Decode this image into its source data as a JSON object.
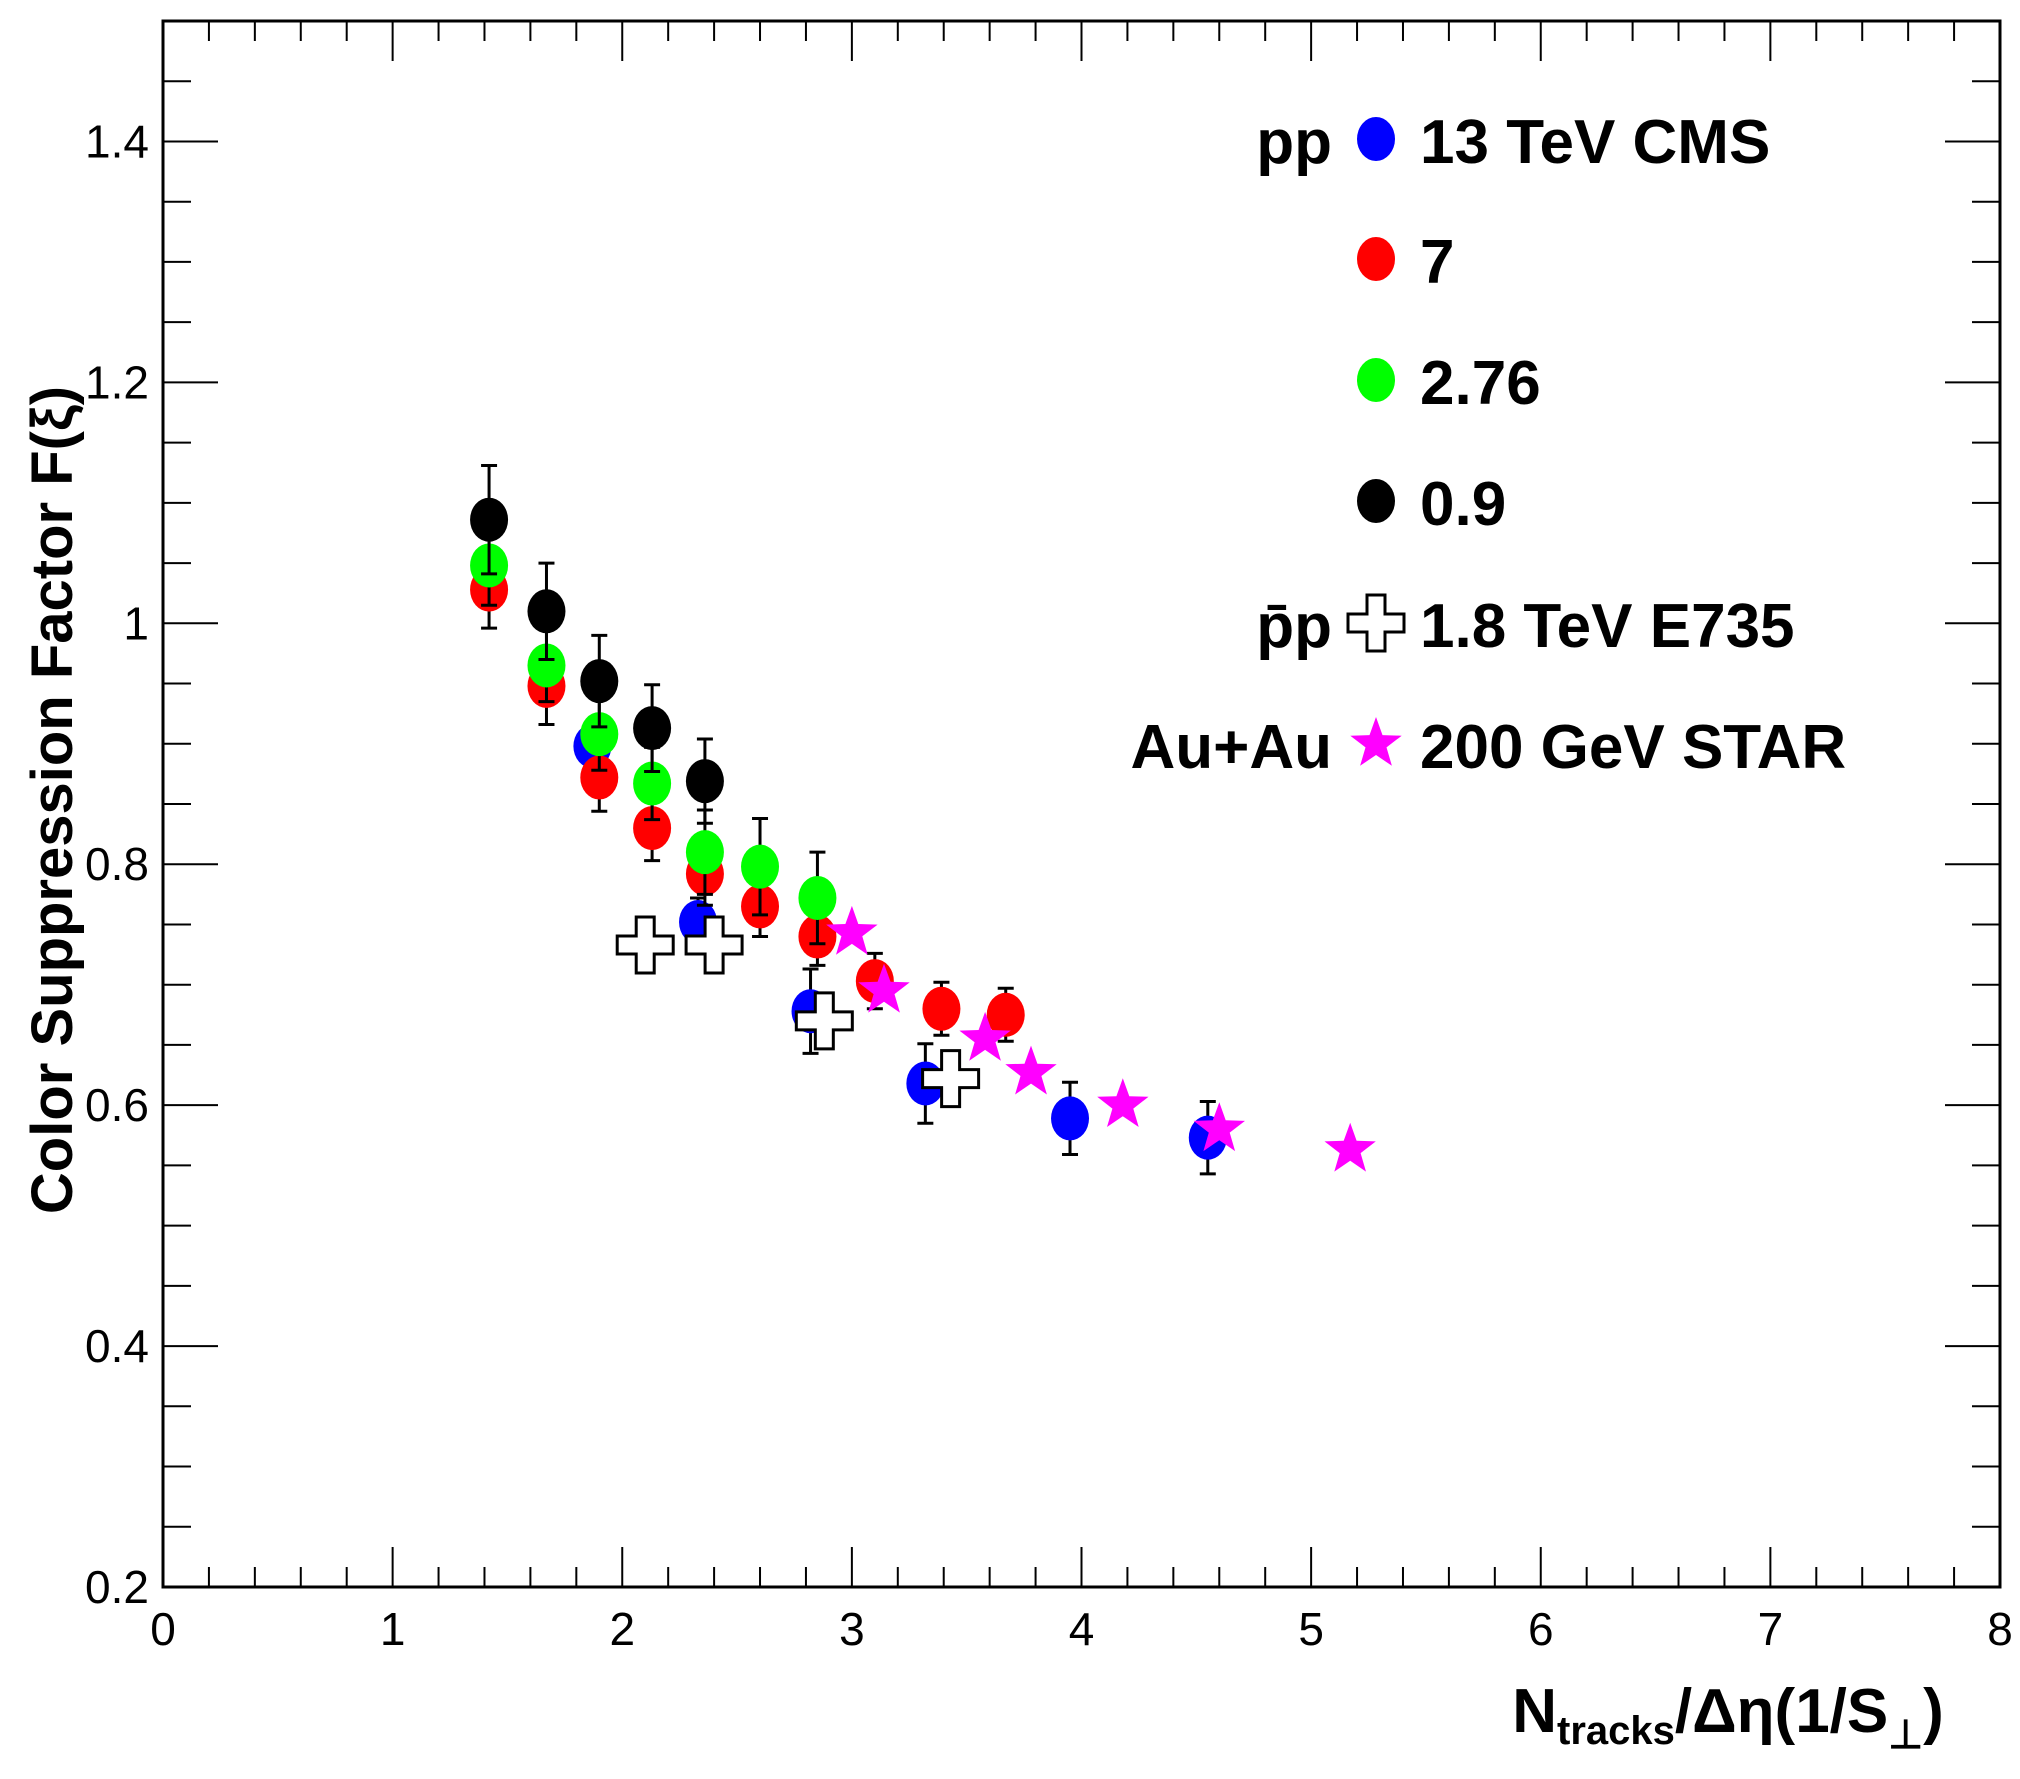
{
  "chart_data": {
    "type": "scatter",
    "title": "",
    "xlabel": "N",
    "xlabel_sub": "tracks",
    "xlabel_rest": "/Δη(1/S",
    "xlabel_sub2": "⊥",
    "xlabel_close": ")",
    "ylabel": "Color Suppression Factor F(ξ)",
    "xlim": [
      0,
      8
    ],
    "ylim": [
      0.2,
      1.5
    ],
    "xticks": [
      0,
      1,
      2,
      3,
      4,
      5,
      6,
      7,
      8
    ],
    "xtick_labels": [
      "0",
      "1",
      "2",
      "3",
      "4",
      "5",
      "6",
      "7",
      "8"
    ],
    "yticks": [
      0.2,
      0.4,
      0.6,
      0.8,
      1.0,
      1.2,
      1.4
    ],
    "ytick_labels": [
      "0.2",
      "0.4",
      "0.6",
      "0.8",
      "1",
      "1.2",
      "1.4"
    ],
    "series": [
      {
        "name": "13 TeV CMS",
        "group": "pp",
        "marker": "circle",
        "color": "#0000ff",
        "points": [
          {
            "x": 1.87,
            "y": 0.898,
            "err": 0.02
          },
          {
            "x": 2.33,
            "y": 0.752,
            "err": 0.02
          },
          {
            "x": 2.82,
            "y": 0.678,
            "err": 0.035
          },
          {
            "x": 3.32,
            "y": 0.618,
            "err": 0.033
          },
          {
            "x": 3.95,
            "y": 0.589,
            "err": 0.03
          },
          {
            "x": 4.55,
            "y": 0.573,
            "err": 0.03
          }
        ]
      },
      {
        "name": "7",
        "group": "",
        "marker": "circle",
        "color": "#ff0000",
        "points": [
          {
            "x": 1.42,
            "y": 1.028,
            "err": 0.032
          },
          {
            "x": 1.67,
            "y": 0.948,
            "err": 0.032
          },
          {
            "x": 1.9,
            "y": 0.872,
            "err": 0.028
          },
          {
            "x": 2.13,
            "y": 0.83,
            "err": 0.027
          },
          {
            "x": 2.36,
            "y": 0.792,
            "err": 0.026
          },
          {
            "x": 2.6,
            "y": 0.765,
            "err": 0.025
          },
          {
            "x": 2.85,
            "y": 0.74,
            "err": 0.024
          },
          {
            "x": 3.1,
            "y": 0.703,
            "err": 0.023
          },
          {
            "x": 3.39,
            "y": 0.68,
            "err": 0.022
          },
          {
            "x": 3.67,
            "y": 0.675,
            "err": 0.022
          }
        ]
      },
      {
        "name": "2.76",
        "group": "",
        "marker": "circle",
        "color": "#00ff00",
        "points": [
          {
            "x": 1.42,
            "y": 1.048,
            "err": 0.033
          },
          {
            "x": 1.67,
            "y": 0.965,
            "err": 0.03
          },
          {
            "x": 1.9,
            "y": 0.908,
            "err": 0.03
          },
          {
            "x": 2.13,
            "y": 0.867,
            "err": 0.03
          },
          {
            "x": 2.36,
            "y": 0.81,
            "err": 0.035
          },
          {
            "x": 2.6,
            "y": 0.798,
            "err": 0.04
          },
          {
            "x": 2.85,
            "y": 0.772,
            "err": 0.038
          }
        ]
      },
      {
        "name": "0.9",
        "group": "",
        "marker": "circle",
        "color": "#000000",
        "points": [
          {
            "x": 1.42,
            "y": 1.086,
            "err": 0.045
          },
          {
            "x": 1.67,
            "y": 1.01,
            "err": 0.04
          },
          {
            "x": 1.9,
            "y": 0.952,
            "err": 0.038
          },
          {
            "x": 2.13,
            "y": 0.913,
            "err": 0.036
          },
          {
            "x": 2.36,
            "y": 0.869,
            "err": 0.035
          }
        ]
      },
      {
        "name": "1.8 TeV E735",
        "group": "p̄p",
        "marker": "open-cross",
        "color": "#000000",
        "points": [
          {
            "x": 2.1,
            "y": 0.733
          },
          {
            "x": 2.4,
            "y": 0.733
          },
          {
            "x": 2.88,
            "y": 0.67
          },
          {
            "x": 3.43,
            "y": 0.622
          }
        ]
      },
      {
        "name": "200 GeV STAR",
        "group": "Au+Au",
        "marker": "star",
        "color": "#ff00ff",
        "points": [
          {
            "x": 3.0,
            "y": 0.743
          },
          {
            "x": 3.14,
            "y": 0.695
          },
          {
            "x": 3.58,
            "y": 0.655
          },
          {
            "x": 3.78,
            "y": 0.627
          },
          {
            "x": 4.18,
            "y": 0.6
          },
          {
            "x": 4.6,
            "y": 0.58
          },
          {
            "x": 5.17,
            "y": 0.563
          }
        ]
      }
    ]
  }
}
